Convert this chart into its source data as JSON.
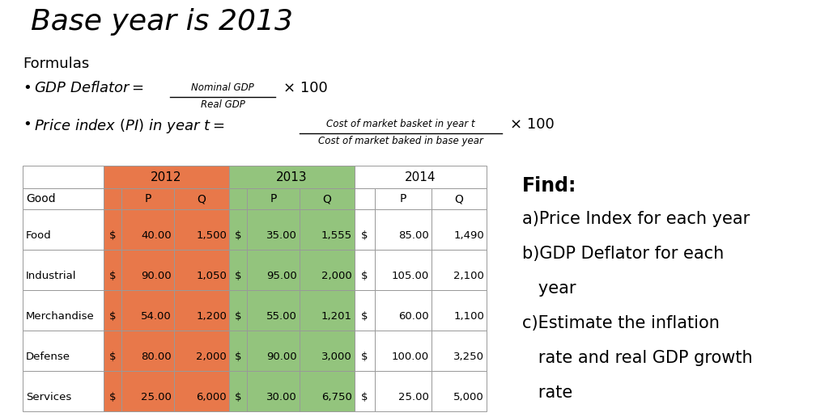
{
  "title": "Base year is 2013",
  "formulas_label": "Formulas",
  "formula1_num": "Nominal GDP",
  "formula1_den": "Real GDP",
  "formula2_num": "Cost of market basket in year t",
  "formula2_den": "Cost of market baked in base year",
  "rows": [
    [
      "Food",
      "$ ",
      "40.00",
      "1,500",
      "$ ",
      "35.00",
      "1,555",
      "$ ",
      "85.00",
      "1,490"
    ],
    [
      "Industrial",
      "$ ",
      "90.00",
      "1,050",
      "$ ",
      "95.00",
      "2,000",
      "$ ",
      "105.00",
      "2,100"
    ],
    [
      "Merchandise",
      "$ ",
      "54.00",
      "1,200",
      "$ ",
      "55.00",
      "1,201",
      "$ ",
      "60.00",
      "1,100"
    ],
    [
      "Defense",
      "$ ",
      "80.00",
      "2,000",
      "$ ",
      "90.00",
      "3,000",
      "$ ",
      "100.00",
      "3,250"
    ],
    [
      "Services",
      "$ ",
      "25.00",
      "6,000",
      "$ ",
      "30.00",
      "6,750",
      "$ ",
      "25.00",
      "5,000"
    ]
  ],
  "color_2012": "#E8784A",
  "color_2013": "#93C47D",
  "color_2014": "#FFFFFF",
  "color_border": "#999999",
  "find_lines": [
    [
      "Find:",
      17,
      true
    ],
    [
      "a)Price Index for each year",
      15,
      false
    ],
    [
      "b)GDP Deflator for each",
      15,
      false
    ],
    [
      "   year",
      15,
      false
    ],
    [
      "c)Estimate the inflation",
      15,
      false
    ],
    [
      "   rate and real GDP growth",
      15,
      false
    ],
    [
      "   rate",
      15,
      false
    ]
  ],
  "bg_color": "#FFFFFF"
}
